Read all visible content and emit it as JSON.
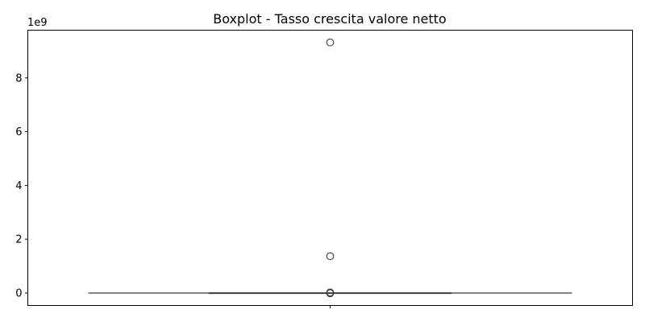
{
  "chart_data": {
    "type": "boxplot",
    "title": "Boxplot - Tasso crescita valore netto",
    "xlabel": "",
    "ylabel": "",
    "y_offset_label": "1e9",
    "y_multiplier": 1000000000,
    "ylim": [
      -0.465,
      9.775
    ],
    "y_ticks": [
      0,
      2,
      4,
      6,
      8
    ],
    "y_tick_labels": [
      "0",
      "2",
      "4",
      "6",
      "8"
    ],
    "box": {
      "q1": 0,
      "median": 0,
      "q3": 0,
      "whisker_low": 0,
      "whisker_high": 0
    },
    "outliers": [
      9.32,
      1.37,
      0.02,
      0.0,
      -0.01
    ],
    "grid": false,
    "colors": {
      "box_line": "#3a3a3a",
      "axis": "#000000",
      "background": "#ffffff"
    }
  }
}
